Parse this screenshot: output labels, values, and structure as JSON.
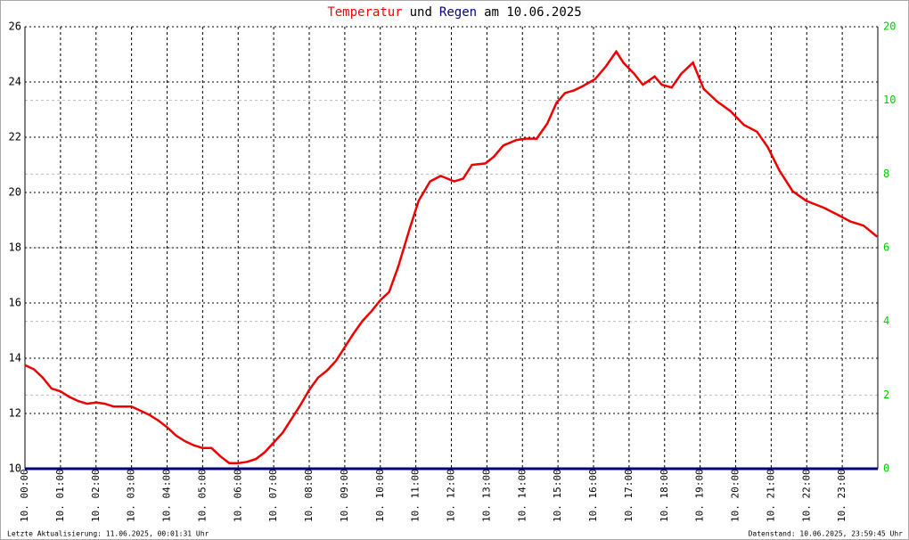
{
  "chart_data": {
    "type": "line",
    "title_parts": [
      {
        "text": "Temperatur",
        "color": "#ff0000"
      },
      {
        "text": "und",
        "color": "#000000"
      },
      {
        "text": "Regen",
        "color": "#000080"
      },
      {
        "text": "am 10.06.2025",
        "color": "#000000"
      }
    ],
    "footer_left": "Letzte Aktualisierung: 11.06.2025, 00:01:31 Uhr",
    "footer_right": "Datenstand: 10.06.2025, 23:59:45 Uhr",
    "series": [
      {
        "name": "Temperatur",
        "color": "#ee0000",
        "x": [
          0,
          0.25,
          0.5,
          0.75,
          1,
          1.25,
          1.5,
          1.75,
          2,
          2.25,
          2.5,
          2.75,
          3,
          3.25,
          3.5,
          3.75,
          4,
          4.25,
          4.5,
          4.75,
          5,
          5.25,
          5.5,
          5.75,
          6,
          6.25,
          6.5,
          6.75,
          7,
          7.25,
          7.5,
          7.75,
          8,
          8.25,
          8.5,
          8.75,
          9,
          9.25,
          9.5,
          9.75,
          10,
          10.25,
          10.5,
          10.83,
          11.08,
          11.4,
          11.7,
          12.08,
          12.33,
          12.58,
          12.96,
          13.2,
          13.46,
          13.83,
          14.09,
          14.4,
          14.7,
          14.96,
          15.2,
          15.46,
          15.7,
          16.04,
          16.34,
          16.64,
          16.84,
          17.14,
          17.39,
          17.72,
          17.92,
          18.2,
          18.47,
          18.8,
          19.1,
          19.47,
          19.85,
          20.23,
          20.6,
          20.9,
          21.23,
          21.6,
          21.98,
          22.48,
          22.86,
          23.23,
          23.6,
          23.98
        ],
        "values": [
          13.75,
          13.6,
          13.3,
          12.9,
          12.8,
          12.6,
          12.45,
          12.35,
          12.4,
          12.35,
          12.25,
          12.25,
          12.25,
          12.1,
          11.95,
          11.75,
          11.5,
          11.2,
          11.0,
          10.85,
          10.75,
          10.75,
          10.45,
          10.2,
          10.2,
          10.25,
          10.35,
          10.6,
          10.95,
          11.3,
          11.8,
          12.3,
          12.85,
          13.3,
          13.55,
          13.9,
          14.4,
          14.9,
          15.35,
          15.7,
          16.1,
          16.4,
          17.3,
          18.7,
          19.7,
          20.4,
          20.6,
          20.4,
          20.5,
          21.0,
          21.05,
          21.3,
          21.7,
          21.9,
          21.95,
          21.95,
          22.5,
          23.25,
          23.6,
          23.7,
          23.85,
          24.1,
          24.55,
          25.1,
          24.7,
          24.3,
          23.9,
          24.2,
          23.9,
          23.8,
          24.3,
          24.7,
          23.75,
          23.3,
          22.95,
          22.45,
          22.2,
          21.65,
          20.8,
          20.05,
          19.7,
          19.45,
          19.2,
          18.95,
          18.8,
          18.4
        ]
      },
      {
        "name": "Regen",
        "color": "#000080",
        "axis": "y2",
        "x": [
          0,
          24
        ],
        "values": [
          0,
          0
        ]
      }
    ],
    "xlim": [
      0,
      24
    ],
    "xticks": [
      {
        "value": 0,
        "label": "10. 00:00"
      },
      {
        "value": 1,
        "label": "10. 01:00"
      },
      {
        "value": 2,
        "label": "10. 02:00"
      },
      {
        "value": 3,
        "label": "10. 03:00"
      },
      {
        "value": 4,
        "label": "10. 04:00"
      },
      {
        "value": 5,
        "label": "10. 05:00"
      },
      {
        "value": 6,
        "label": "10. 06:00"
      },
      {
        "value": 7,
        "label": "10. 07:00"
      },
      {
        "value": 8,
        "label": "10. 08:00"
      },
      {
        "value": 9,
        "label": "10. 09:00"
      },
      {
        "value": 10,
        "label": "10. 10:00"
      },
      {
        "value": 11,
        "label": "10. 11:00"
      },
      {
        "value": 12,
        "label": "10. 12:00"
      },
      {
        "value": 13,
        "label": "10. 13:00"
      },
      {
        "value": 14,
        "label": "10. 14:00"
      },
      {
        "value": 15,
        "label": "10. 15:00"
      },
      {
        "value": 16,
        "label": "10. 16:00"
      },
      {
        "value": 17,
        "label": "10. 17:00"
      },
      {
        "value": 18,
        "label": "10. 18:00"
      },
      {
        "value": 19,
        "label": "10. 19:00"
      },
      {
        "value": 20,
        "label": "10. 20:00"
      },
      {
        "value": 21,
        "label": "10. 21:00"
      },
      {
        "value": 22,
        "label": "10. 22:00"
      },
      {
        "value": 23,
        "label": "10. 23:00"
      }
    ],
    "ylim": [
      10,
      26
    ],
    "yticks": [
      10,
      12,
      14,
      16,
      18,
      20,
      22,
      24,
      26
    ],
    "y2lim": [
      0,
      12
    ],
    "y2ticks": [
      0,
      2,
      4,
      6,
      8,
      10
    ],
    "y2_top_label": "20",
    "y2_color": "#00cc00",
    "grid": true
  }
}
